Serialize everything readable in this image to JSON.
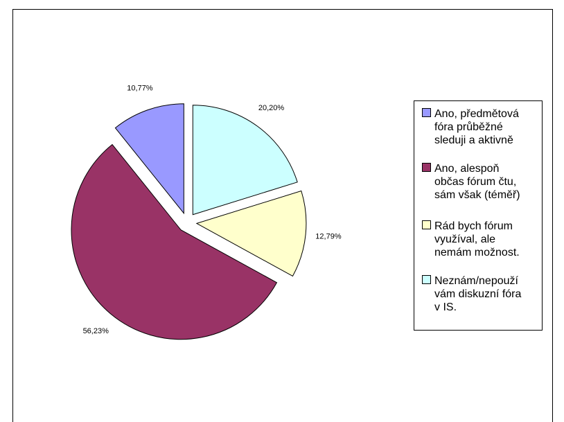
{
  "chart_data": {
    "type": "pie",
    "categories": [
      "Ano, předmětová\nfóra průběžné\nsleduji a aktivně",
      "Ano, alespoň\nobčas fórum čtu,\nsám však (téměř)",
      "Rád bych fórum\nvyužíval, ale\nnemám možnost.",
      "Neznám/nepouží\nvám diskuzní fóra\nv IS."
    ],
    "values": [
      10.77,
      56.23,
      12.79,
      20.2
    ],
    "value_labels": [
      "10,77%",
      "56,23%",
      "12,79%",
      "20,20%"
    ],
    "colors": [
      "#9999ff",
      "#993366",
      "#ffffcc",
      "#ccffff"
    ],
    "legend": "right"
  }
}
